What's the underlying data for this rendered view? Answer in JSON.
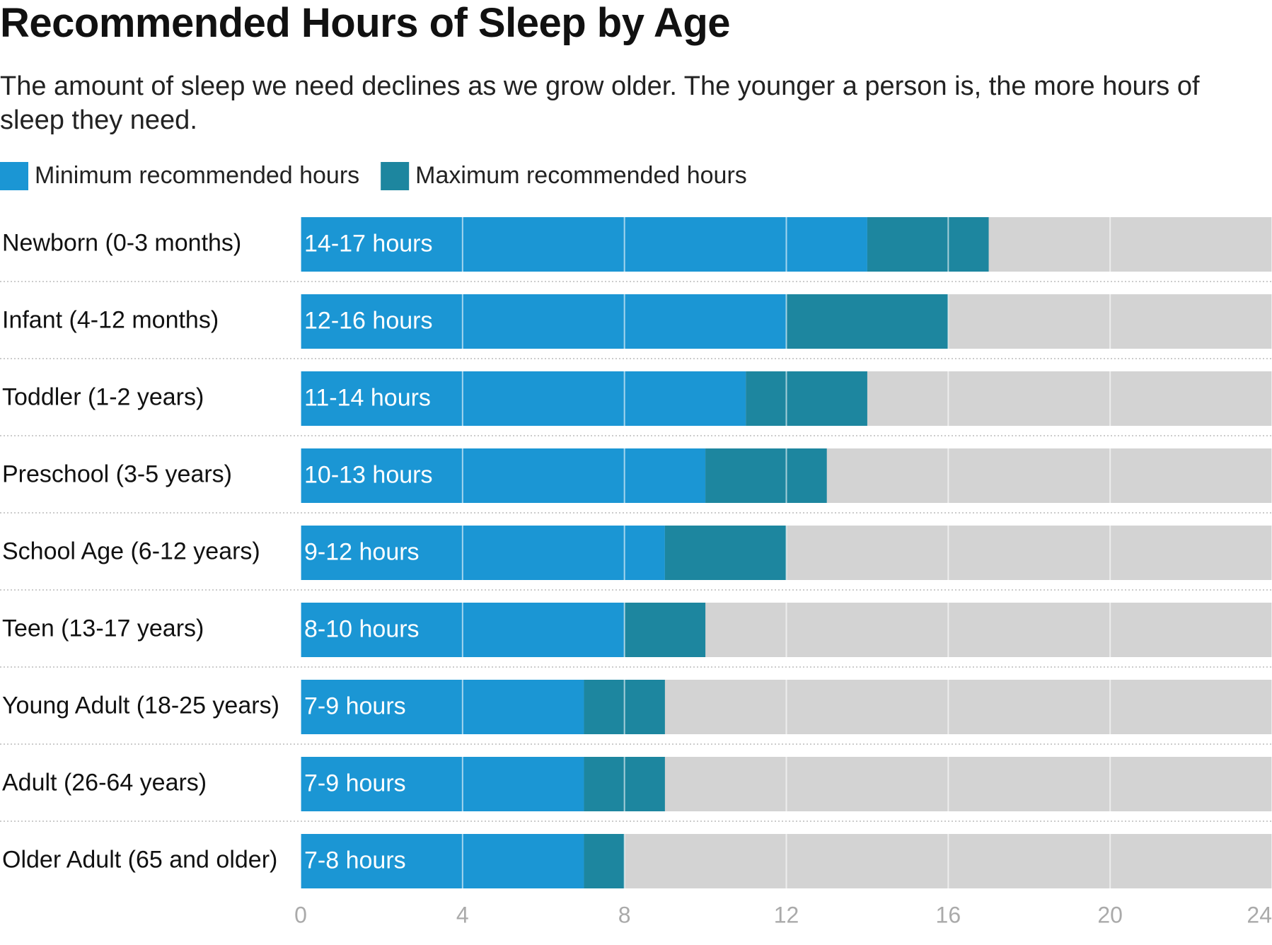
{
  "chart_data": {
    "type": "bar",
    "orientation": "horizontal",
    "stacked": true,
    "title": "Recommended Hours of Sleep by Age",
    "subtitle": "The amount of sleep we need declines as we grow older. The younger a person is, the more hours of sleep they need.",
    "categories": [
      "Newborn (0-3 months)",
      "Infant (4-12 months)",
      "Toddler (1-2 years)",
      "Preschool (3-5 years)",
      "School Age (6-12 years)",
      "Teen (13-17 years)",
      "Young Adult (18-25 years)",
      "Adult (26-64 years)",
      "Older Adult (65 and older)"
    ],
    "series": [
      {
        "name": "Minimum recommended hours",
        "color": "#1b96d4",
        "values": [
          14,
          12,
          11,
          10,
          9,
          8,
          7,
          7,
          7
        ],
        "value_labels": [
          "14-17 hours",
          "12-16 hours",
          "11-14 hours",
          "10-13 hours",
          "9-12 hours",
          "8-10 hours",
          "7-9 hours",
          "7-9 hours",
          "7-8 hours"
        ]
      },
      {
        "name": "Maximum recommended hours",
        "color": "#1d869f",
        "values": [
          3,
          4,
          3,
          3,
          3,
          2,
          2,
          2,
          1
        ]
      }
    ],
    "track_color": "#d3d3d3",
    "xlim": [
      0,
      24
    ],
    "xticks": [
      0,
      4,
      8,
      12,
      16,
      20,
      24
    ],
    "grid": true
  }
}
